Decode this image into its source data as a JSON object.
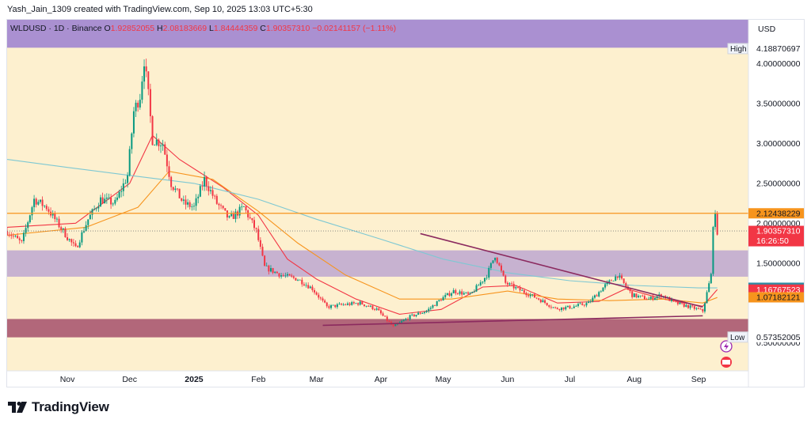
{
  "header": {
    "credit": "Yash_Jain_1309 created with TradingView.com, Sep 10, 2025 13:03 UTC+5:30"
  },
  "legend": {
    "symbol": "WLDUSD · 1D · Binance",
    "open_label": "O",
    "open": "1.92852055",
    "high_label": "H",
    "high": "2.08183669",
    "low_label": "L",
    "low": "1.84444359",
    "close_label": "C",
    "close": "1.90357310",
    "change": "−0.02141157 (−1.11%)"
  },
  "brand": {
    "name": "TradingView"
  },
  "chart_data": {
    "type": "candlestick",
    "currency": "USD",
    "ylim": [
      0.15,
      4.55
    ],
    "ytick_labels": [
      "4.00000000",
      "3.50000000",
      "3.00000000",
      "2.50000000",
      "2.00000000",
      "1.50000000",
      "0.50000000"
    ],
    "yticks": [
      4.0,
      3.5,
      3.0,
      2.5,
      2.0,
      1.5,
      0.5
    ],
    "x_range": [
      "2024-10-03",
      "2025-09-25"
    ],
    "xticks": [
      {
        "label": "Nov",
        "date": "2024-11-01",
        "bold": false
      },
      {
        "label": "Dec",
        "date": "2024-12-01",
        "bold": false
      },
      {
        "label": "2025",
        "date": "2025-01-01",
        "bold": true
      },
      {
        "label": "Feb",
        "date": "2025-02-01",
        "bold": false
      },
      {
        "label": "Mar",
        "date": "2025-03-01",
        "bold": false
      },
      {
        "label": "Apr",
        "date": "2025-04-01",
        "bold": false
      },
      {
        "label": "May",
        "date": "2025-05-01",
        "bold": false
      },
      {
        "label": "Jun",
        "date": "2025-06-01",
        "bold": false
      },
      {
        "label": "Jul",
        "date": "2025-07-01",
        "bold": false
      },
      {
        "label": "Aug",
        "date": "2025-08-01",
        "bold": false
      },
      {
        "label": "Sep",
        "date": "2025-09-01",
        "bold": false
      }
    ],
    "price_path": [
      {
        "date": "2024-10-03",
        "price": 1.9
      },
      {
        "date": "2024-10-10",
        "price": 1.75
      },
      {
        "date": "2024-10-16",
        "price": 2.3
      },
      {
        "date": "2024-10-22",
        "price": 2.2
      },
      {
        "date": "2024-10-30",
        "price": 1.9
      },
      {
        "date": "2024-11-05",
        "price": 1.68
      },
      {
        "date": "2024-11-11",
        "price": 2.05
      },
      {
        "date": "2024-11-17",
        "price": 2.3
      },
      {
        "date": "2024-11-24",
        "price": 2.25
      },
      {
        "date": "2024-11-30",
        "price": 2.6
      },
      {
        "date": "2024-12-03",
        "price": 3.4
      },
      {
        "date": "2024-12-06",
        "price": 3.6
      },
      {
        "date": "2024-12-08",
        "price": 4.05
      },
      {
        "date": "2024-12-10",
        "price": 3.6
      },
      {
        "date": "2024-12-12",
        "price": 3.05
      },
      {
        "date": "2024-12-17",
        "price": 3.0
      },
      {
        "date": "2024-12-21",
        "price": 2.5
      },
      {
        "date": "2024-12-27",
        "price": 2.25
      },
      {
        "date": "2025-01-01",
        "price": 2.2
      },
      {
        "date": "2025-01-06",
        "price": 2.55
      },
      {
        "date": "2025-01-12",
        "price": 2.25
      },
      {
        "date": "2025-01-18",
        "price": 2.05
      },
      {
        "date": "2025-01-25",
        "price": 2.2
      },
      {
        "date": "2025-01-31",
        "price": 1.9
      },
      {
        "date": "2025-02-04",
        "price": 1.45
      },
      {
        "date": "2025-02-12",
        "price": 1.35
      },
      {
        "date": "2025-02-20",
        "price": 1.3
      },
      {
        "date": "2025-02-27",
        "price": 1.18
      },
      {
        "date": "2025-03-06",
        "price": 0.95
      },
      {
        "date": "2025-03-14",
        "price": 0.98
      },
      {
        "date": "2025-03-22",
        "price": 1.0
      },
      {
        "date": "2025-03-30",
        "price": 0.92
      },
      {
        "date": "2025-04-07",
        "price": 0.7
      },
      {
        "date": "2025-04-15",
        "price": 0.83
      },
      {
        "date": "2025-04-23",
        "price": 0.9
      },
      {
        "date": "2025-04-30",
        "price": 1.05
      },
      {
        "date": "2025-05-06",
        "price": 1.15
      },
      {
        "date": "2025-05-14",
        "price": 1.1
      },
      {
        "date": "2025-05-22",
        "price": 1.35
      },
      {
        "date": "2025-05-26",
        "price": 1.6
      },
      {
        "date": "2025-05-31",
        "price": 1.25
      },
      {
        "date": "2025-06-08",
        "price": 1.15
      },
      {
        "date": "2025-06-16",
        "price": 1.05
      },
      {
        "date": "2025-06-24",
        "price": 0.93
      },
      {
        "date": "2025-07-02",
        "price": 0.95
      },
      {
        "date": "2025-07-10",
        "price": 1.0
      },
      {
        "date": "2025-07-18",
        "price": 1.22
      },
      {
        "date": "2025-07-24",
        "price": 1.35
      },
      {
        "date": "2025-07-31",
        "price": 1.1
      },
      {
        "date": "2025-08-08",
        "price": 1.05
      },
      {
        "date": "2025-08-14",
        "price": 1.1
      },
      {
        "date": "2025-08-21",
        "price": 1.0
      },
      {
        "date": "2025-08-28",
        "price": 0.95
      },
      {
        "date": "2025-09-03",
        "price": 0.9
      },
      {
        "date": "2025-09-07",
        "price": 1.35
      },
      {
        "date": "2025-09-08",
        "price": 2.0
      },
      {
        "date": "2025-09-09",
        "price": 2.08
      },
      {
        "date": "2025-09-10",
        "price": 1.9
      }
    ],
    "overlays": {
      "purple_bands": [
        {
          "y0": 4.2,
          "y1": 4.55,
          "opacity": 0.85
        },
        {
          "y0": 1.33,
          "y1": 1.66,
          "opacity": 0.55
        }
      ],
      "maroon_band": {
        "y0": 0.57,
        "y1": 0.8
      },
      "horizontal_line": {
        "price": 2.12438229,
        "color": "#f7941d"
      },
      "dotted_line": {
        "price": 1.9035731
      },
      "trendlines": [
        {
          "from": [
            "2025-04-20",
            1.87
          ],
          "to": [
            "2025-09-03",
            0.95
          ],
          "color": "#8b2a5f"
        },
        {
          "from": [
            "2025-03-04",
            0.72
          ],
          "to": [
            "2025-09-03",
            0.84
          ],
          "color": "#8b2a5f"
        }
      ],
      "moving_averages": [
        {
          "color": "#f23645",
          "points": [
            [
              "2024-10-03",
              1.95
            ],
            [
              "2024-11-05",
              2.0
            ],
            [
              "2024-12-01",
              2.5
            ],
            [
              "2024-12-12",
              3.1
            ],
            [
              "2024-12-25",
              2.8
            ],
            [
              "2025-01-15",
              2.45
            ],
            [
              "2025-02-01",
              2.1
            ],
            [
              "2025-02-15",
              1.55
            ],
            [
              "2025-03-01",
              1.3
            ],
            [
              "2025-03-20",
              1.05
            ],
            [
              "2025-04-10",
              0.86
            ],
            [
              "2025-04-30",
              0.92
            ],
            [
              "2025-05-20",
              1.2
            ],
            [
              "2025-06-05",
              1.22
            ],
            [
              "2025-06-25",
              1.0
            ],
            [
              "2025-07-15",
              1.02
            ],
            [
              "2025-07-28",
              1.18
            ],
            [
              "2025-08-15",
              1.05
            ],
            [
              "2025-09-03",
              0.96
            ],
            [
              "2025-09-10",
              1.17
            ]
          ]
        },
        {
          "color": "#f7941d",
          "points": [
            [
              "2024-10-03",
              1.85
            ],
            [
              "2024-11-10",
              1.95
            ],
            [
              "2024-12-05",
              2.2
            ],
            [
              "2024-12-20",
              2.65
            ],
            [
              "2025-01-10",
              2.55
            ],
            [
              "2025-02-01",
              2.15
            ],
            [
              "2025-02-20",
              1.75
            ],
            [
              "2025-03-15",
              1.35
            ],
            [
              "2025-04-10",
              1.05
            ],
            [
              "2025-05-05",
              1.05
            ],
            [
              "2025-06-01",
              1.15
            ],
            [
              "2025-06-25",
              1.05
            ],
            [
              "2025-07-20",
              1.03
            ],
            [
              "2025-08-15",
              1.05
            ],
            [
              "2025-09-03",
              1.0
            ],
            [
              "2025-09-10",
              1.07
            ]
          ]
        },
        {
          "color": "#7ec8d3",
          "points": [
            [
              "2024-10-03",
              2.8
            ],
            [
              "2024-11-01",
              2.7
            ],
            [
              "2024-12-01",
              2.6
            ],
            [
              "2025-01-01",
              2.5
            ],
            [
              "2025-02-01",
              2.3
            ],
            [
              "2025-03-01",
              2.05
            ],
            [
              "2025-04-01",
              1.8
            ],
            [
              "2025-05-01",
              1.55
            ],
            [
              "2025-06-01",
              1.38
            ],
            [
              "2025-07-01",
              1.28
            ],
            [
              "2025-08-01",
              1.22
            ],
            [
              "2025-09-01",
              1.19
            ],
            [
              "2025-09-10",
              1.19
            ]
          ]
        }
      ]
    },
    "price_labels": [
      {
        "name": "high",
        "tag": "High",
        "value": "4.18870697",
        "price": 4.1887,
        "style": "plain"
      },
      {
        "name": "orange-line",
        "value": "2.12438229",
        "price": 2.1244,
        "style": "orange"
      },
      {
        "name": "last-price",
        "value": "1.90357310",
        "countdown": "16:26:50",
        "price": 1.9036,
        "style": "red"
      },
      {
        "name": "ma-teal",
        "value": "1.19116917",
        "price": 1.1912,
        "style": "teal"
      },
      {
        "name": "ma-red",
        "value": "1.16767523",
        "price": 1.1677,
        "style": "red"
      },
      {
        "name": "ma-orange",
        "value": "1.07182121",
        "price": 1.0718,
        "style": "orange"
      },
      {
        "name": "low",
        "tag": "Low",
        "value": "0.57352005",
        "price": 0.5735,
        "style": "plain"
      }
    ],
    "colors": {
      "up": "#089981",
      "down": "#f23645",
      "background": "#fdf0cf",
      "purple": "#9b7fd1",
      "maroon": "#a44f6b",
      "orange": "#f7941d",
      "teal": "#2f8ba3",
      "red": "#f23645"
    }
  }
}
